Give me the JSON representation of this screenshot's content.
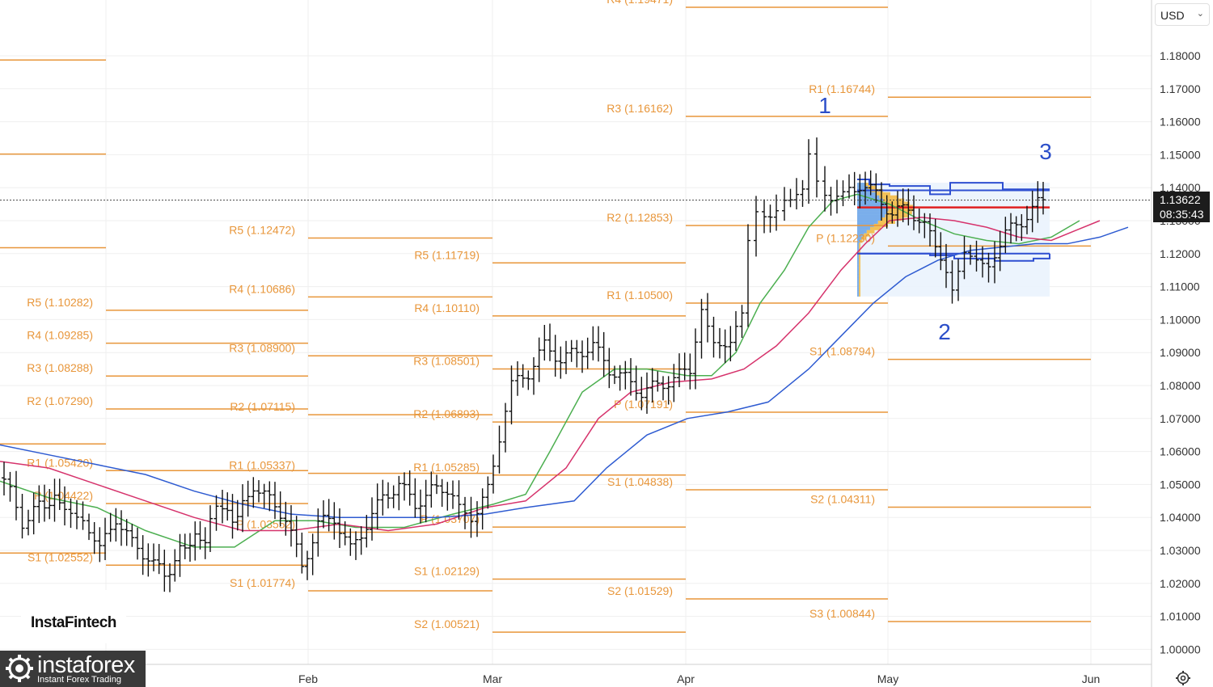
{
  "chart_data": {
    "type": "candlestick",
    "currency": "USD",
    "y_axis": {
      "range": [
        0.995,
        1.2
      ],
      "ticks": [
        "1.18000",
        "1.17000",
        "1.16000",
        "1.15000",
        "1.14000",
        "1.13000",
        "1.12000",
        "1.11000",
        "1.10000",
        "1.09000",
        "1.08000",
        "1.07000",
        "1.06000",
        "1.05000",
        "1.04000",
        "1.03000",
        "1.02000",
        "1.01000",
        "1.00000"
      ]
    },
    "x_axis": {
      "months": [
        "Feb",
        "Mar",
        "Apr",
        "May",
        "Jun"
      ]
    },
    "current_price": "1.13622",
    "countdown": "08:35:43",
    "wave_labels": [
      "1",
      "2",
      "3"
    ],
    "pivot_periods": [
      {
        "levels": [
          {
            "label": "R5 (1.10282)",
            "value": 1.10282
          },
          {
            "label": "R4 (1.09285)",
            "value": 1.09285
          },
          {
            "label": "R3 (1.08288)",
            "value": 1.08288
          },
          {
            "label": "R2 (1.07290)",
            "value": 1.0729
          },
          {
            "label": "R1 (1.05420)",
            "value": 1.0542
          },
          {
            "label": "P (1.04422)",
            "value": 1.04422
          },
          {
            "label": "S1 (1.02552)",
            "value": 1.02552
          }
        ]
      },
      {
        "levels": [
          {
            "label": "R5 (1.12472)",
            "value": 1.12472
          },
          {
            "label": "R4 (1.10686)",
            "value": 1.10686
          },
          {
            "label": "R3 (1.08900)",
            "value": 1.089
          },
          {
            "label": "R2 (1.07115)",
            "value": 1.07115
          },
          {
            "label": "R1 (1.05337)",
            "value": 1.05337
          },
          {
            "label": "P (1.03552)",
            "value": 1.03552
          },
          {
            "label": "S1 (1.01774)",
            "value": 1.01774
          }
        ]
      },
      {
        "levels": [
          {
            "label": "R5 (1.11719)",
            "value": 1.11719
          },
          {
            "label": "R4 (1.10110)",
            "value": 1.1011
          },
          {
            "label": "R3 (1.08501)",
            "value": 1.08501
          },
          {
            "label": "R2 (1.06893)",
            "value": 1.06893
          },
          {
            "label": "R1 (1.05285)",
            "value": 1.05285
          },
          {
            "label": "P (1.03707)",
            "value": 1.03707
          },
          {
            "label": "S1 (1.02129)",
            "value": 1.02129
          },
          {
            "label": "S2 (1.00521)",
            "value": 1.00521
          }
        ]
      },
      {
        "levels": [
          {
            "label": "R4 (1.19471)",
            "value": 1.19471
          },
          {
            "label": "R3 (1.16162)",
            "value": 1.16162
          },
          {
            "label": "R2 (1.12853)",
            "value": 1.12853
          },
          {
            "label": "R1 (1.10500)",
            "value": 1.105
          },
          {
            "label": "P (1.07191)",
            "value": 1.07191
          },
          {
            "label": "S1 (1.04838)",
            "value": 1.04838
          },
          {
            "label": "S2 (1.01529)",
            "value": 1.01529
          }
        ]
      },
      {
        "levels": [
          {
            "label": "R1 (1.16744)",
            "value": 1.16744
          },
          {
            "label": "P (1.12230)",
            "value": 1.1223
          },
          {
            "label": "S1 (1.08794)",
            "value": 1.08794
          },
          {
            "label": "S2 (1.04311)",
            "value": 1.04311
          },
          {
            "label": "S3 (1.00844)",
            "value": 1.00844
          }
        ]
      }
    ],
    "volume_profile": {
      "value_area_high": 1.1395,
      "poc": 1.134,
      "value_area_low": 1.12
    },
    "colors": {
      "pivot": "#e8963a",
      "ma_fast": "#4caf50",
      "ma_mid": "#d6336c",
      "ma_slow": "#2e5bd1",
      "poc": "#e02020",
      "value_area": "#2e4fd1",
      "current_price_tag": "#1c1c1c",
      "wave_label": "#2b4ec9"
    }
  },
  "branding": {
    "logo_small": "InstaFintech",
    "logo_main": "instaforex",
    "logo_tagline": "Instant Forex Trading"
  }
}
